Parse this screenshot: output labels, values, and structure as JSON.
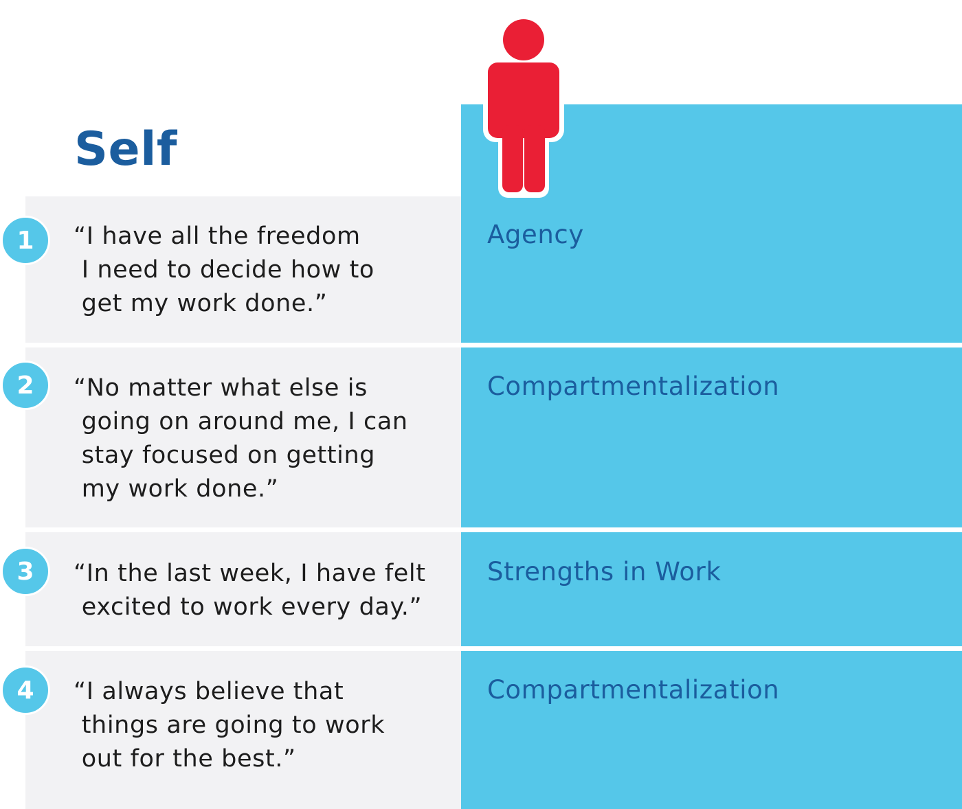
{
  "colors": {
    "accent": "#55c7e9",
    "panel": "#f2f2f4",
    "title": "#1b5d9e",
    "label": "#1b5d9e",
    "figure": "#ea1f35"
  },
  "header": {
    "title": "Self",
    "icon": "person-icon"
  },
  "items": [
    {
      "number": "1",
      "quote": "“I have all the freedom\n I need to decide how to\n get my work done.”",
      "category": "Agency"
    },
    {
      "number": "2",
      "quote": "“No matter what else is\n going on around me, I can\n stay focused on getting\n my work done.”",
      "category": "Compartmentalization"
    },
    {
      "number": "3",
      "quote": "“In the last week, I have felt\n excited to work every day.”",
      "category": "Strengths in Work"
    },
    {
      "number": "4",
      "quote": "“I always believe that\n things are going to work\n out for the best.”",
      "category": "Compartmentalization"
    }
  ]
}
